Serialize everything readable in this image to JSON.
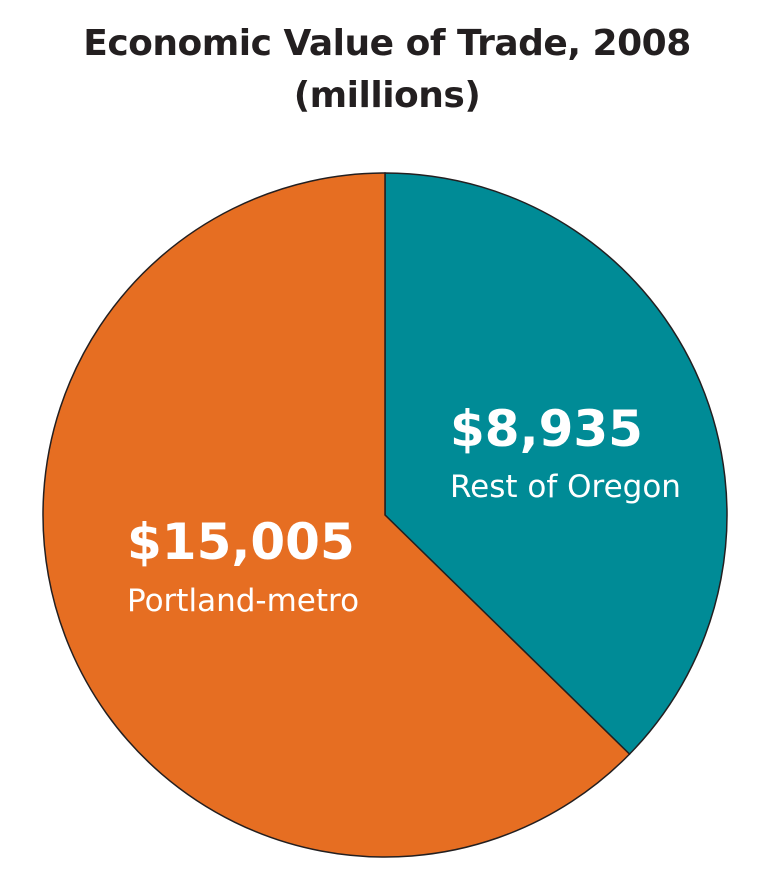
{
  "chart_data": {
    "type": "pie",
    "title": "Economic Value of Trade, 2008",
    "subtitle": "(millions)",
    "slices": [
      {
        "label": "Rest of Oregon",
        "value": 8935,
        "value_label": "$8,935",
        "color": "#008b96"
      },
      {
        "label": "Portland-metro",
        "value": 15005,
        "value_label": "$15,005",
        "color": "#e66e22"
      }
    ]
  }
}
